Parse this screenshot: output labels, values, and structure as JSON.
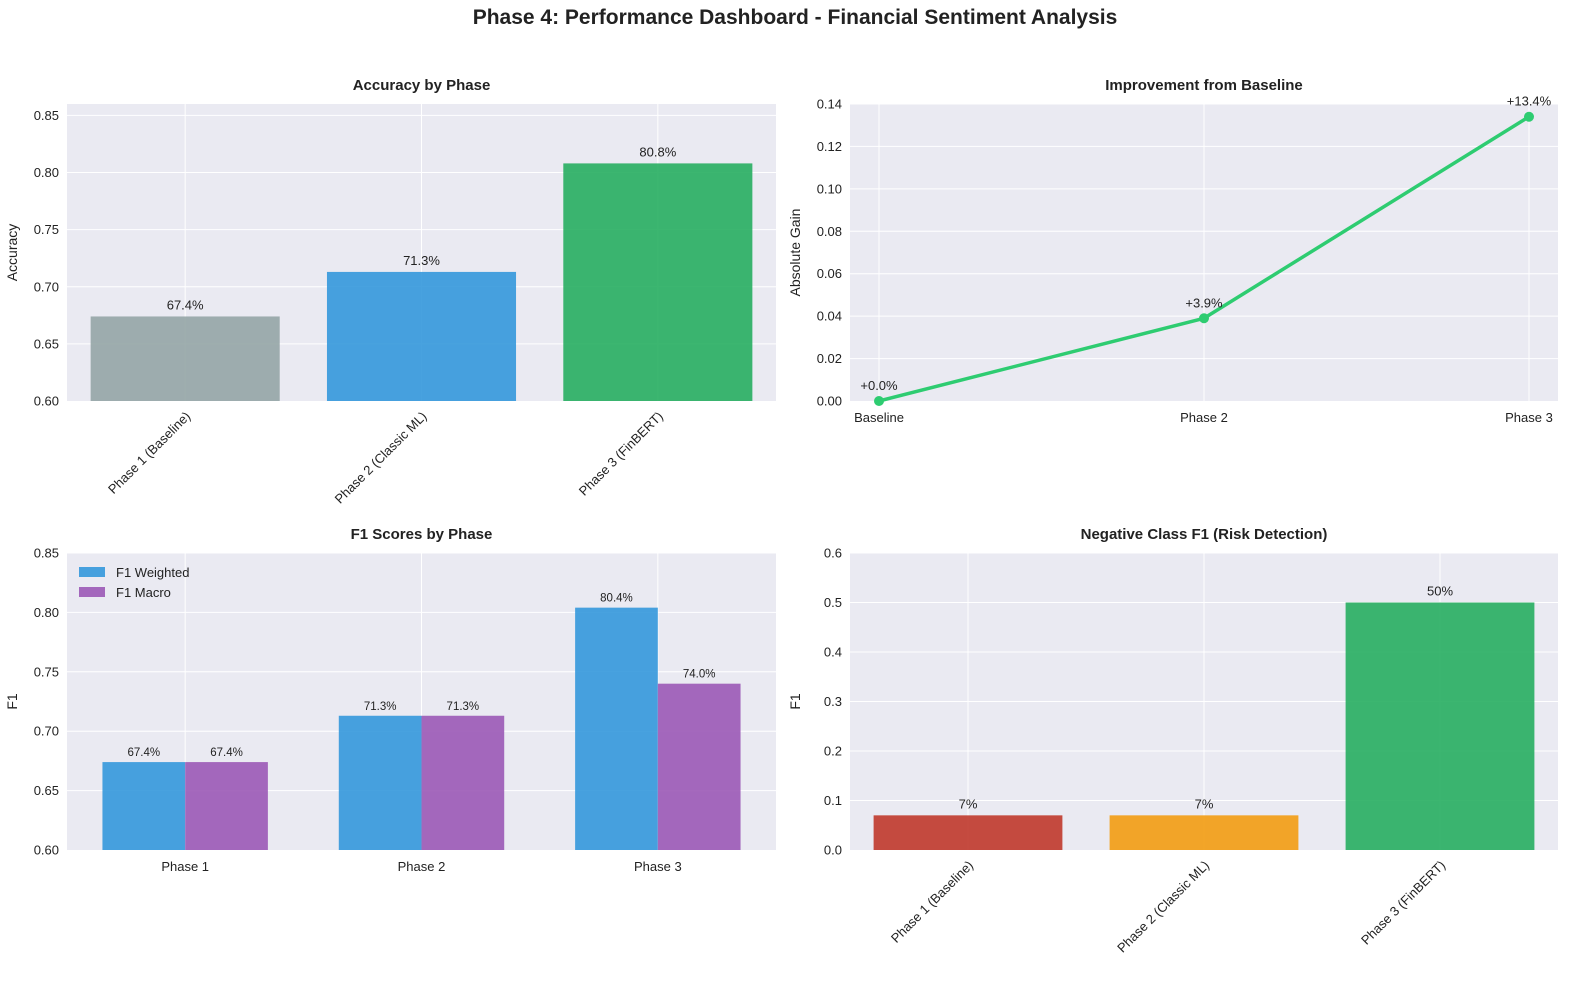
{
  "suptitle": "Phase 4: Performance Dashboard - Financial Sentiment Analysis",
  "chart_data": [
    {
      "id": "accuracy",
      "type": "bar",
      "title": "Accuracy by Phase",
      "xlabel": "",
      "ylabel": "Accuracy",
      "categories": [
        "Phase 1 (Baseline)",
        "Phase 2 (Classic ML)",
        "Phase 3 (FinBERT)"
      ],
      "values": [
        0.674,
        0.713,
        0.808
      ],
      "labels": [
        "67.4%",
        "71.3%",
        "80.8%"
      ],
      "colors": [
        "#95a5a6",
        "#3498db",
        "#27ae60"
      ],
      "ylim": [
        0.6,
        0.86
      ],
      "yticks": [
        0.6,
        0.65,
        0.7,
        0.75,
        0.8,
        0.85
      ],
      "yticklabels": [
        "0.60",
        "0.65",
        "0.70",
        "0.75",
        "0.80",
        "0.85"
      ],
      "xtick_rotation": 45,
      "grid": true
    },
    {
      "id": "improvement",
      "type": "line",
      "title": "Improvement from Baseline",
      "xlabel": "",
      "ylabel": "Absolute Gain",
      "categories": [
        "Baseline",
        "Phase 2",
        "Phase 3"
      ],
      "values": [
        0.0,
        0.039,
        0.134
      ],
      "labels": [
        "+0.0%",
        "+3.9%",
        "+13.4%"
      ],
      "color": "#2ecc71",
      "ylim": [
        0.0,
        0.14
      ],
      "yticks": [
        0.0,
        0.02,
        0.04,
        0.06,
        0.08,
        0.1,
        0.12,
        0.14
      ],
      "yticklabels": [
        "0.00",
        "0.02",
        "0.04",
        "0.06",
        "0.08",
        "0.10",
        "0.12",
        "0.14"
      ],
      "grid": true
    },
    {
      "id": "f1",
      "type": "bar",
      "title": "F1 Scores by Phase",
      "xlabel": "",
      "ylabel": "F1",
      "categories": [
        "Phase 1",
        "Phase 2",
        "Phase 3"
      ],
      "series": [
        {
          "name": "F1 Weighted",
          "values": [
            0.674,
            0.713,
            0.804
          ],
          "labels": [
            "67.4%",
            "71.3%",
            "80.4%"
          ],
          "color": "#3498db"
        },
        {
          "name": "F1 Macro",
          "values": [
            0.674,
            0.713,
            0.74
          ],
          "labels": [
            "67.4%",
            "71.3%",
            "74.0%"
          ],
          "color": "#9b59b6"
        }
      ],
      "ylim": [
        0.6,
        0.85
      ],
      "yticks": [
        0.6,
        0.65,
        0.7,
        0.75,
        0.8,
        0.85
      ],
      "yticklabels": [
        "0.60",
        "0.65",
        "0.70",
        "0.75",
        "0.80",
        "0.85"
      ],
      "legend": "top-left",
      "grid": true
    },
    {
      "id": "negf1",
      "type": "bar",
      "title": "Negative Class F1 (Risk Detection)",
      "xlabel": "",
      "ylabel": "F1",
      "categories": [
        "Phase 1 (Baseline)",
        "Phase 2 (Classic ML)",
        "Phase 3 (FinBERT)"
      ],
      "values": [
        0.07,
        0.07,
        0.5
      ],
      "labels": [
        "7%",
        "7%",
        "50%"
      ],
      "colors": [
        "#c0392b",
        "#f39c12",
        "#27ae60"
      ],
      "ylim": [
        0.0,
        0.6
      ],
      "yticks": [
        0.0,
        0.1,
        0.2,
        0.3,
        0.4,
        0.5,
        0.6
      ],
      "yticklabels": [
        "0.0",
        "0.1",
        "0.2",
        "0.3",
        "0.4",
        "0.5",
        "0.6"
      ],
      "xtick_rotation": 45,
      "grid": true
    }
  ]
}
